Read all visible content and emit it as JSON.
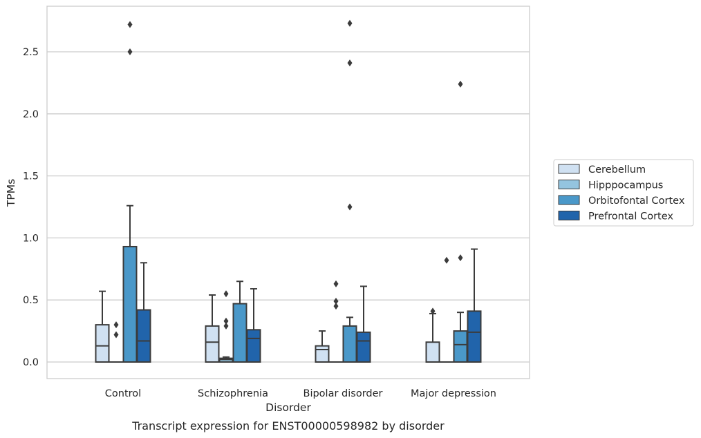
{
  "chart_data": {
    "type": "box",
    "caption": "Transcript expression for ENST00000598982 by disorder",
    "xlabel": "Disorder",
    "ylabel": "TPMs",
    "ylim": [
      -0.13,
      2.87
    ],
    "yticks": [
      0.0,
      0.5,
      1.0,
      1.5,
      2.0,
      2.5
    ],
    "ytick_labels": [
      "0.0",
      "0.5",
      "1.0",
      "1.5",
      "2.0",
      "2.5"
    ],
    "grid": "horizontal",
    "legend_position": "right",
    "categories": [
      "Control",
      "Schizophrenia",
      "Bipolar disorder",
      "Major depression"
    ],
    "series": [
      {
        "name": "Cerebellum",
        "color": "#d0e1f2",
        "boxes": [
          {
            "whislo": 0.0,
            "q1": 0.0,
            "med": 0.13,
            "q3": 0.3,
            "whishi": 0.57,
            "fliers": []
          },
          {
            "whislo": 0.0,
            "q1": 0.0,
            "med": 0.16,
            "q3": 0.29,
            "whishi": 0.54,
            "fliers": []
          },
          {
            "whislo": 0.0,
            "q1": 0.0,
            "med": 0.1,
            "q3": 0.13,
            "whishi": 0.25,
            "fliers": []
          },
          {
            "whislo": 0.0,
            "q1": 0.0,
            "med": 0.0,
            "q3": 0.16,
            "whishi": 0.39,
            "fliers": [
              0.41
            ]
          }
        ]
      },
      {
        "name": "Hipppocampus",
        "color": "#94c4df",
        "boxes": [
          {
            "whislo": 0.0,
            "q1": 0.0,
            "med": 0.0,
            "q3": 0.0,
            "whishi": 0.0,
            "fliers": [
              0.22,
              0.3
            ]
          },
          {
            "whislo": 0.0,
            "q1": 0.0,
            "med": 0.02,
            "q3": 0.03,
            "whishi": 0.04,
            "fliers": [
              0.29,
              0.33,
              0.55
            ]
          },
          {
            "whislo": 0.0,
            "q1": 0.0,
            "med": 0.0,
            "q3": 0.0,
            "whishi": 0.0,
            "fliers": [
              0.45,
              0.49,
              0.63
            ]
          },
          {
            "whislo": 0.0,
            "q1": 0.0,
            "med": 0.0,
            "q3": 0.0,
            "whishi": 0.0,
            "fliers": [
              0.82
            ]
          }
        ]
      },
      {
        "name": "Orbitofontal Cortex",
        "color": "#4a98c9",
        "boxes": [
          {
            "whislo": 0.0,
            "q1": 0.0,
            "med": 0.93,
            "q3": 0.93,
            "whishi": 1.26,
            "fliers": [
              2.5,
              2.72
            ]
          },
          {
            "whislo": 0.0,
            "q1": 0.0,
            "med": 0.0,
            "q3": 0.47,
            "whishi": 0.65,
            "fliers": []
          },
          {
            "whislo": 0.0,
            "q1": 0.0,
            "med": 0.0,
            "q3": 0.29,
            "whishi": 0.36,
            "fliers": [
              1.25,
              2.41,
              2.73
            ]
          },
          {
            "whislo": 0.0,
            "q1": 0.0,
            "med": 0.14,
            "q3": 0.25,
            "whishi": 0.4,
            "fliers": [
              0.84,
              2.24
            ]
          }
        ]
      },
      {
        "name": "Prefrontal Cortex",
        "color": "#2164ab",
        "boxes": [
          {
            "whislo": 0.0,
            "q1": 0.0,
            "med": 0.17,
            "q3": 0.42,
            "whishi": 0.8,
            "fliers": []
          },
          {
            "whislo": 0.0,
            "q1": 0.0,
            "med": 0.19,
            "q3": 0.26,
            "whishi": 0.59,
            "fliers": []
          },
          {
            "whislo": 0.0,
            "q1": 0.0,
            "med": 0.17,
            "q3": 0.24,
            "whishi": 0.61,
            "fliers": []
          },
          {
            "whislo": 0.0,
            "q1": 0.0,
            "med": 0.24,
            "q3": 0.41,
            "whishi": 0.91,
            "fliers": []
          }
        ]
      }
    ]
  }
}
